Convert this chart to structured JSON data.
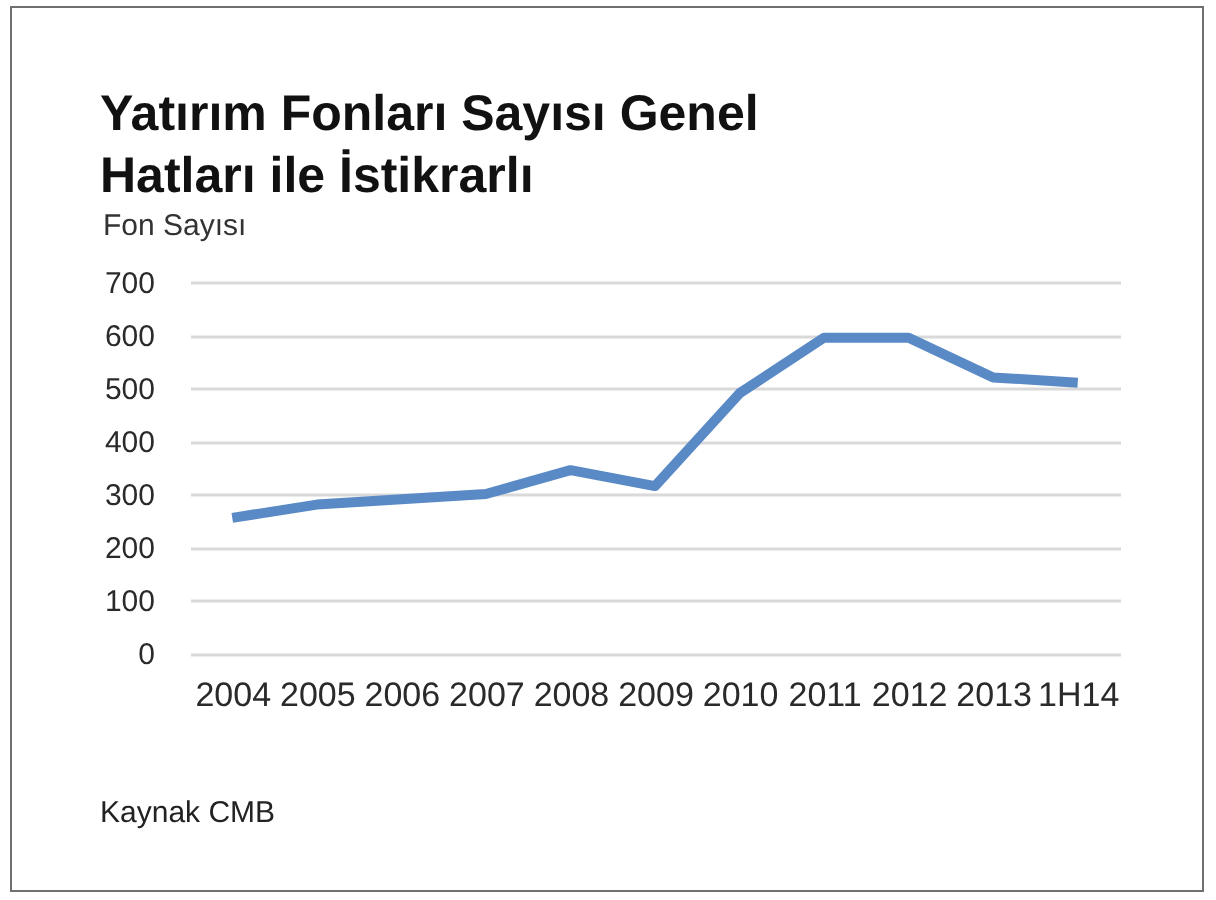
{
  "chart_data": {
    "type": "line",
    "title": "Yatırım Fonları Sayısı Genel Hatları ile İstikrarlı",
    "ylabel": "Fon Sayısı",
    "annotations": [
      "Kaynak CMB"
    ],
    "categories": [
      "2004",
      "2005",
      "2006",
      "2007",
      "2008",
      "2009",
      "2010",
      "2011",
      "2012",
      "2013",
      "1H14"
    ],
    "series": [
      {
        "color": "#5a8ac6",
        "values": [
          255,
          280,
          290,
          300,
          345,
          315,
          490,
          595,
          595,
          520,
          510
        ]
      }
    ],
    "ylim": [
      0,
      700
    ],
    "yticks": [
      0,
      100,
      200,
      300,
      400,
      500,
      600,
      700
    ],
    "grid": "y"
  }
}
